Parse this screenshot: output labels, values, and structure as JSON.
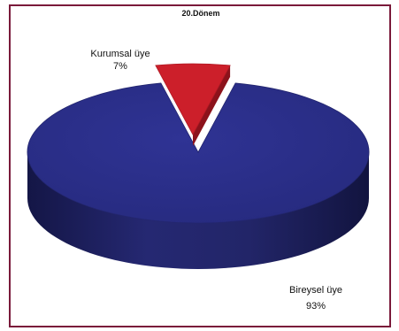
{
  "chart_data": {
    "type": "pie",
    "title": "20.Dönem",
    "categories": [
      "Kurumsal üye",
      "Bireysel üye"
    ],
    "values": [
      7,
      93
    ],
    "value_labels": [
      "7%",
      "93%"
    ],
    "colors": [
      "#cc1f2a",
      "#2b2f8a"
    ],
    "style": "3d-exploded",
    "legend": "none"
  },
  "colors": {
    "border": "#7a1a3a",
    "background": "#ffffff"
  }
}
